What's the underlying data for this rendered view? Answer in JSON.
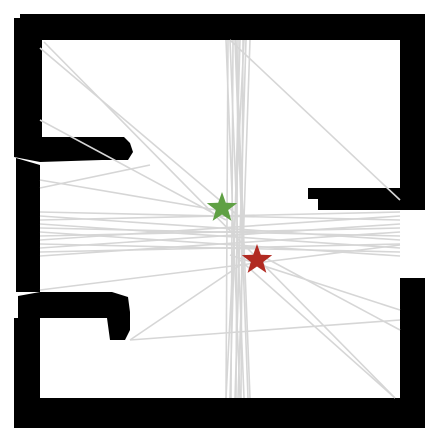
{
  "map": {
    "background_color": "#ffffff",
    "wall_color": "#000000",
    "path_color": "#d6d6d6",
    "markers": [
      {
        "name": "start-marker",
        "shape": "star",
        "color": "#5fa044"
      },
      {
        "name": "goal-marker",
        "shape": "star",
        "color": "#b12a22"
      }
    ]
  }
}
